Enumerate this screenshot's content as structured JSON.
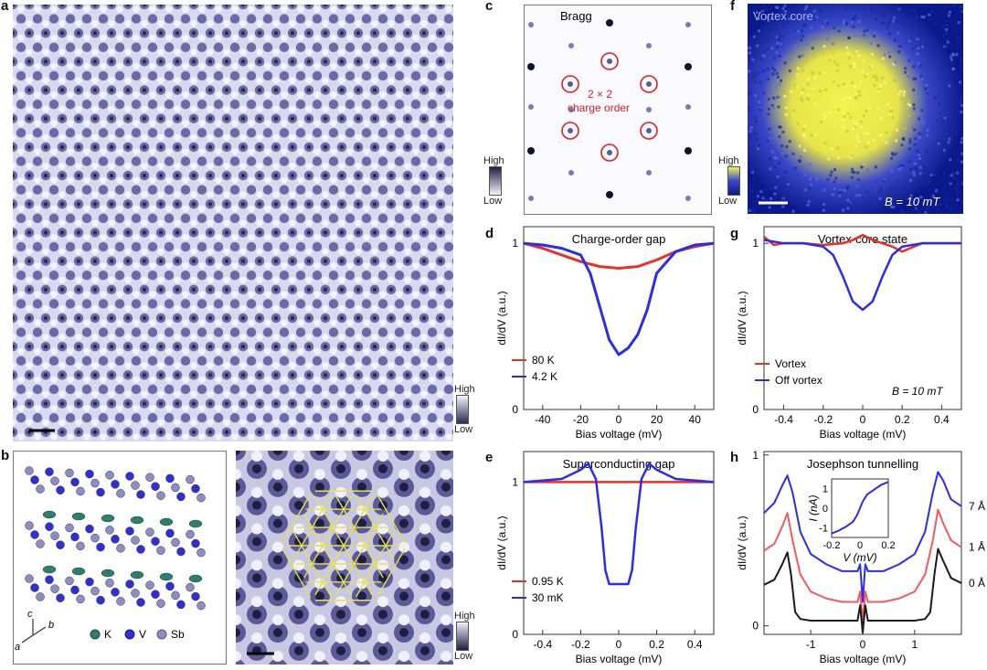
{
  "panel_labels": {
    "a": "a",
    "b": "b",
    "c": "c",
    "d": "d",
    "e": "e",
    "f": "f",
    "g": "g",
    "h": "h"
  },
  "colorbar": {
    "high": "High",
    "low": "Low"
  },
  "colors": {
    "red": "#e8302a",
    "blue": "#2b2bf0",
    "black": "#1a1a1a",
    "pink": "#f05a5a",
    "stm": "#7d7dc0",
    "bragg_ring": "#e02020",
    "kagome": "#e8e050",
    "vortex": "#f0f040"
  },
  "panel_b": {
    "legend": [
      {
        "label": "K",
        "color": "#2f7d6d"
      },
      {
        "label": "V",
        "color": "#2f2fd8"
      },
      {
        "label": "Sb",
        "color": "#8c8cc8"
      }
    ],
    "axes": {
      "a": "a",
      "b": "b",
      "c": "c"
    }
  },
  "panel_c": {
    "title": "Bragg",
    "annotation_line1": "2 × 2",
    "annotation_line2": "charge order"
  },
  "panel_f": {
    "title": "Vortex core",
    "field": "B = 10 mT"
  },
  "chart_data": [
    {
      "id": "d",
      "type": "line",
      "title": "Charge-order gap",
      "xlabel": "Bias voltage (mV)",
      "ylabel": "dI/dV (a.u.)",
      "xlim": [
        -50,
        50
      ],
      "ylim": [
        0,
        1.1
      ],
      "xticks": [
        -40,
        -20,
        0,
        20,
        40
      ],
      "yticks": [
        0,
        1
      ],
      "series": [
        {
          "name": "80 K",
          "color": "#e8302a",
          "x": [
            -50,
            -40,
            -30,
            -20,
            -10,
            0,
            10,
            20,
            30,
            40,
            50
          ],
          "y": [
            1.0,
            0.97,
            0.93,
            0.89,
            0.86,
            0.85,
            0.86,
            0.9,
            0.95,
            0.98,
            1.0
          ]
        },
        {
          "name": "4.2 K",
          "color": "#2b2bf0",
          "x": [
            -50,
            -40,
            -30,
            -20,
            -15,
            -10,
            -5,
            0,
            5,
            10,
            15,
            20,
            30,
            40,
            50
          ],
          "y": [
            1.0,
            0.99,
            0.97,
            0.93,
            0.82,
            0.62,
            0.42,
            0.33,
            0.37,
            0.45,
            0.6,
            0.82,
            0.95,
            0.99,
            1.0
          ]
        }
      ]
    },
    {
      "id": "e",
      "type": "line",
      "title": "Superconducting gap",
      "xlabel": "Bias voltage (mV)",
      "ylabel": "dI/dV (a.u.)",
      "xlim": [
        -0.5,
        0.5
      ],
      "ylim": [
        0,
        1.2
      ],
      "xticks": [
        -0.4,
        -0.2,
        0,
        0.2,
        0.4
      ],
      "yticks": [
        0,
        1
      ],
      "series": [
        {
          "name": "0.95 K",
          "color": "#e8302a",
          "x": [
            -0.5,
            -0.25,
            0,
            0.25,
            0.5
          ],
          "y": [
            1.0,
            1.0,
            1.0,
            1.0,
            1.0
          ]
        },
        {
          "name": "30 mK",
          "color": "#2b2bf0",
          "x": [
            -0.5,
            -0.3,
            -0.2,
            -0.16,
            -0.12,
            -0.09,
            -0.07,
            -0.05,
            0,
            0.05,
            0.07,
            0.09,
            0.12,
            0.16,
            0.2,
            0.3,
            0.5
          ],
          "y": [
            1.0,
            1.02,
            1.08,
            1.12,
            1.02,
            0.7,
            0.42,
            0.33,
            0.33,
            0.33,
            0.42,
            0.7,
            1.02,
            1.12,
            1.08,
            1.02,
            1.0
          ]
        }
      ]
    },
    {
      "id": "g",
      "type": "line",
      "title": "Vortex-core state",
      "xlabel": "Bias voltage (mV)",
      "ylabel": "dI/dV (a.u.)",
      "xlim": [
        -0.5,
        0.5
      ],
      "ylim": [
        0,
        1.1
      ],
      "xticks": [
        -0.4,
        -0.2,
        0,
        0.2,
        0.4
      ],
      "yticks": [
        0,
        1
      ],
      "annotation": "B = 10 mT",
      "series": [
        {
          "name": "Vortex",
          "color": "#e8302a",
          "x": [
            -0.5,
            -0.45,
            -0.4,
            -0.3,
            -0.2,
            -0.1,
            -0.05,
            0,
            0.05,
            0.1,
            0.15,
            0.2,
            0.3,
            0.4,
            0.5
          ],
          "y": [
            1.04,
            0.99,
            1.0,
            1.0,
            0.99,
            1.0,
            1.02,
            1.05,
            1.02,
            1.0,
            0.98,
            0.95,
            1.0,
            1.0,
            1.0
          ]
        },
        {
          "name": "Off vortex",
          "color": "#2b2bf0",
          "x": [
            -0.5,
            -0.4,
            -0.3,
            -0.2,
            -0.15,
            -0.1,
            -0.05,
            0,
            0.05,
            0.1,
            0.15,
            0.2,
            0.3,
            0.4,
            0.5
          ],
          "y": [
            1.02,
            1.0,
            1.0,
            0.98,
            0.93,
            0.8,
            0.65,
            0.6,
            0.65,
            0.8,
            0.93,
            0.98,
            1.0,
            1.0,
            1.0
          ]
        }
      ]
    },
    {
      "id": "h",
      "type": "line",
      "title": "Josephson tunnelling",
      "xlabel": "Bias voltage (mV)",
      "ylabel": "dI/dV (a.u.)",
      "xlim": [
        -1.9,
        1.9
      ],
      "ylim": [
        -0.05,
        1.02
      ],
      "xticks": [
        -1,
        0,
        1
      ],
      "yticks": [
        0,
        1
      ],
      "series": [
        {
          "name": "7 Å",
          "color": "#2b2bf0",
          "x": [
            -1.9,
            -1.7,
            -1.55,
            -1.45,
            -1.35,
            -1.2,
            -1.0,
            -0.7,
            -0.4,
            -0.1,
            -0.05,
            0,
            0.05,
            0.1,
            0.4,
            0.7,
            1.0,
            1.2,
            1.35,
            1.45,
            1.55,
            1.7,
            1.9
          ],
          "y": [
            0.66,
            0.72,
            0.82,
            0.88,
            0.78,
            0.55,
            0.42,
            0.36,
            0.32,
            0.32,
            0.36,
            0.14,
            0.36,
            0.32,
            0.32,
            0.36,
            0.42,
            0.55,
            0.78,
            0.9,
            0.85,
            0.74,
            0.7
          ]
        },
        {
          "name": "1 Å",
          "color": "#f05a5a",
          "x": [
            -1.9,
            -1.7,
            -1.55,
            -1.45,
            -1.35,
            -1.2,
            -1.0,
            -0.7,
            -0.4,
            -0.1,
            -0.05,
            0,
            0.05,
            0.1,
            0.4,
            0.7,
            1.0,
            1.2,
            1.35,
            1.45,
            1.55,
            1.7,
            1.9
          ],
          "y": [
            0.44,
            0.48,
            0.58,
            0.66,
            0.5,
            0.3,
            0.2,
            0.16,
            0.14,
            0.14,
            0.2,
            0.02,
            0.2,
            0.14,
            0.14,
            0.16,
            0.2,
            0.3,
            0.5,
            0.68,
            0.6,
            0.5,
            0.46
          ]
        },
        {
          "name": "0 Å",
          "color": "#1a1a1a",
          "x": [
            -1.9,
            -1.7,
            -1.55,
            -1.45,
            -1.38,
            -1.3,
            -1.2,
            -1.0,
            -0.5,
            -0.1,
            -0.05,
            0,
            0.05,
            0.1,
            0.5,
            1.0,
            1.2,
            1.3,
            1.38,
            1.45,
            1.55,
            1.7,
            1.9
          ],
          "y": [
            0.24,
            0.27,
            0.36,
            0.43,
            0.3,
            0.08,
            0.04,
            0.03,
            0.03,
            0.03,
            0.12,
            -0.04,
            0.12,
            0.03,
            0.03,
            0.03,
            0.04,
            0.08,
            0.3,
            0.45,
            0.38,
            0.28,
            0.25
          ]
        }
      ],
      "inset": {
        "xlabel": "V (mV)",
        "ylabel": "I (nA)",
        "xlim": [
          -0.2,
          0.2
        ],
        "ylim": [
          -1.5,
          1.5
        ],
        "xticks": [
          -0.2,
          0,
          0.2
        ],
        "yticks": [
          -1,
          0,
          1
        ],
        "x": [
          -0.2,
          -0.15,
          -0.1,
          -0.05,
          -0.02,
          0,
          0.02,
          0.05,
          0.1,
          0.15,
          0.2
        ],
        "y": [
          -1.3,
          -1.15,
          -0.95,
          -0.7,
          -0.35,
          0,
          0.35,
          0.7,
          0.95,
          1.2,
          1.35
        ]
      }
    }
  ]
}
